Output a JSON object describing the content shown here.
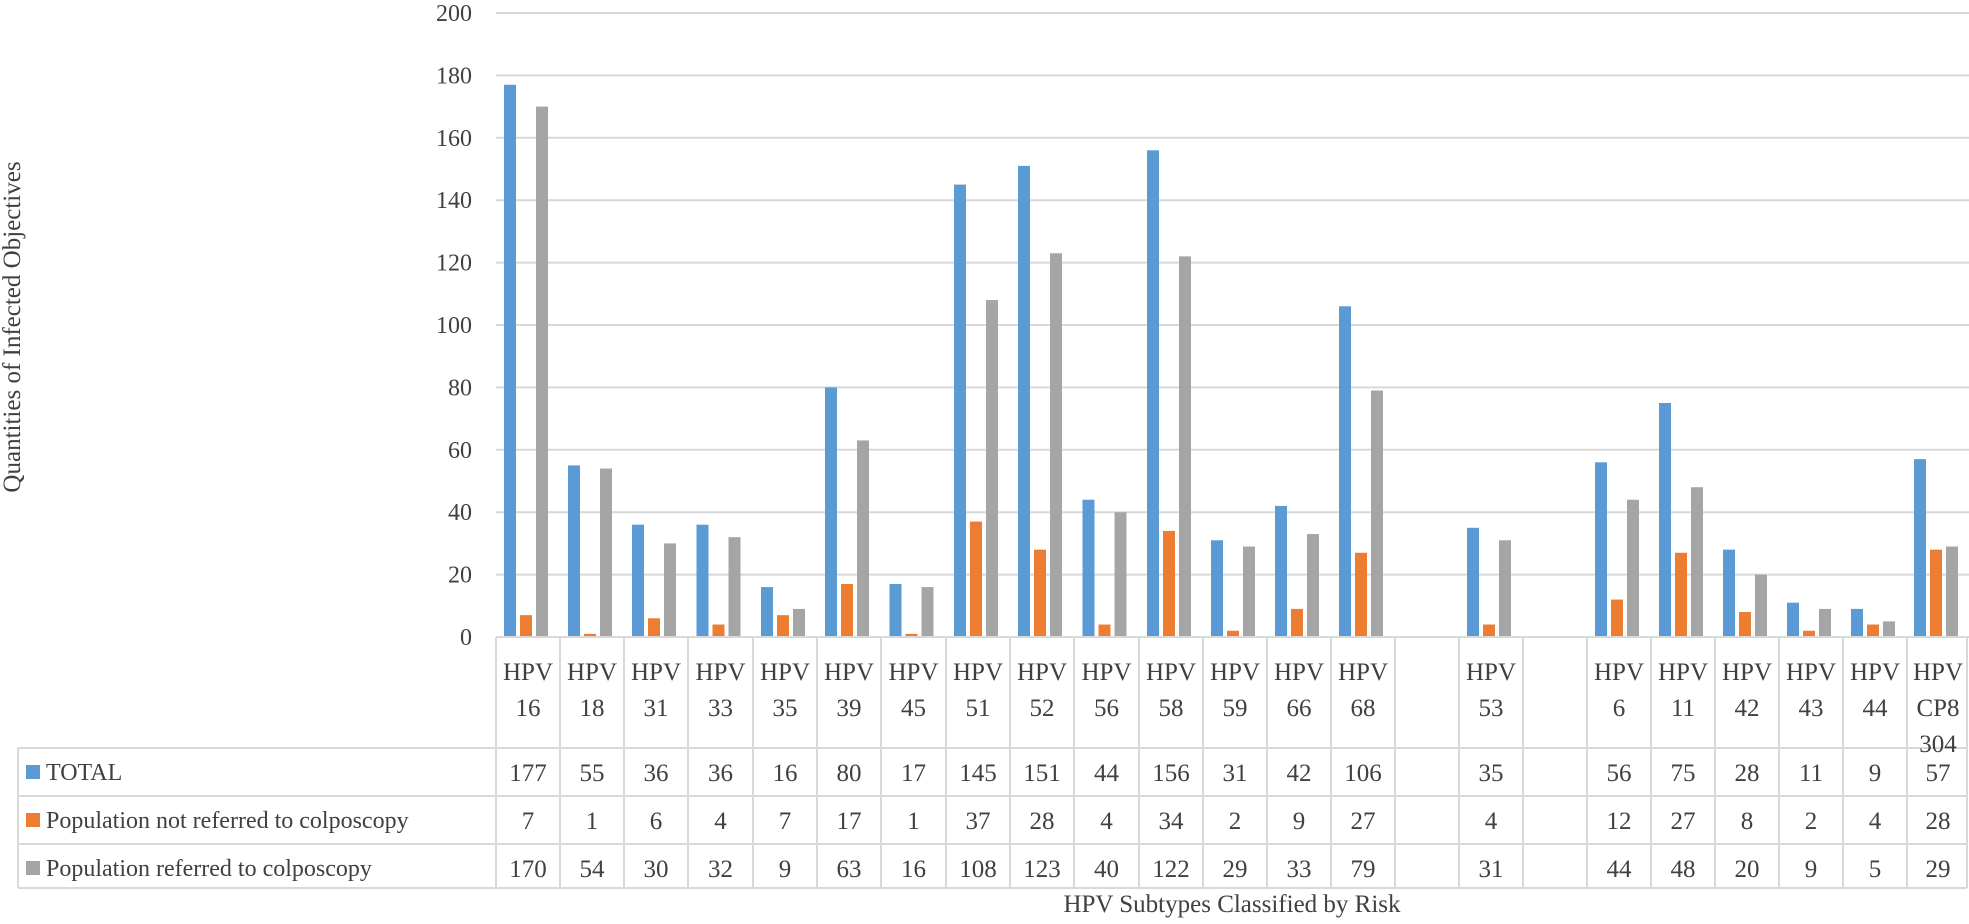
{
  "chart_data": {
    "type": "bar",
    "ylabel": "Quantities of Infected Objectives",
    "xlabel": "HPV Subtypes Classified by Risk",
    "ylim": [
      0,
      200
    ],
    "yticks": [
      "0",
      "20",
      "40",
      "60",
      "80",
      "100",
      "120",
      "140",
      "160",
      "180",
      "200"
    ],
    "grid": true,
    "legend_placement": "data-table-left",
    "categories": [
      [
        "HPV",
        "16"
      ],
      [
        "HPV",
        "18"
      ],
      [
        "HPV",
        "31"
      ],
      [
        "HPV",
        "33"
      ],
      [
        "HPV",
        "35"
      ],
      [
        "HPV",
        "39"
      ],
      [
        "HPV",
        "45"
      ],
      [
        "HPV",
        "51"
      ],
      [
        "HPV",
        "52"
      ],
      [
        "HPV",
        "56"
      ],
      [
        "HPV",
        "58"
      ],
      [
        "HPV",
        "59"
      ],
      [
        "HPV",
        "66"
      ],
      [
        "HPV",
        "68"
      ],
      [],
      [
        "HPV",
        "53"
      ],
      [],
      [
        "HPV",
        "6"
      ],
      [
        "HPV",
        "11"
      ],
      [
        "HPV",
        "42"
      ],
      [
        "HPV",
        "43"
      ],
      [
        "HPV",
        "44"
      ],
      [
        "HPV",
        "CP8",
        "304"
      ]
    ],
    "series": [
      {
        "name": "TOTAL",
        "color": "#5B9BD5",
        "values": [
          177,
          55,
          36,
          36,
          16,
          80,
          17,
          145,
          151,
          44,
          156,
          31,
          42,
          106,
          null,
          35,
          null,
          56,
          75,
          28,
          11,
          9,
          57
        ]
      },
      {
        "name": "Population not referred to colposcopy",
        "color": "#ED7D31",
        "values": [
          7,
          1,
          6,
          4,
          7,
          17,
          1,
          37,
          28,
          4,
          34,
          2,
          9,
          27,
          null,
          4,
          null,
          12,
          27,
          8,
          2,
          4,
          28
        ]
      },
      {
        "name": "Population referred to colposcopy",
        "color": "#A5A5A5",
        "values": [
          170,
          54,
          30,
          32,
          9,
          63,
          16,
          108,
          123,
          40,
          122,
          29,
          33,
          79,
          null,
          31,
          null,
          44,
          48,
          20,
          9,
          5,
          29
        ]
      }
    ]
  }
}
